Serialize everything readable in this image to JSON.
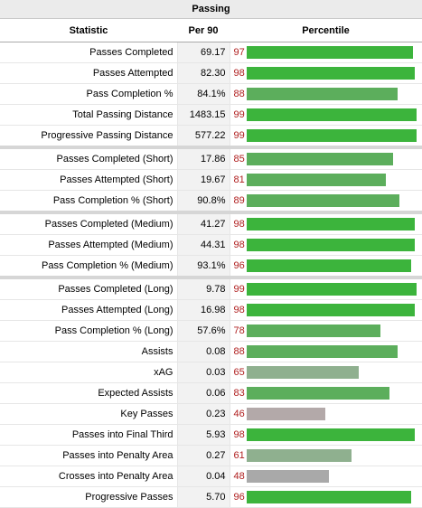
{
  "table": {
    "caption": "Passing",
    "headers": {
      "statistic": "Statistic",
      "per90": "Per 90",
      "percentile": "Percentile"
    },
    "colors": {
      "high": "#3cb43c",
      "mid": "#5cae5c",
      "low": "#8fb08f",
      "lowest": "#a9a9a9",
      "lowest_b": "#b3a9a9",
      "percentile_text": "#b02020"
    },
    "rows": [
      {
        "stat": "Passes Completed",
        "per90": "69.17",
        "percentile": "97",
        "pct": 0.97,
        "tier": "high"
      },
      {
        "stat": "Passes Attempted",
        "per90": "82.30",
        "percentile": "98",
        "pct": 0.98,
        "tier": "high"
      },
      {
        "stat": "Pass Completion %",
        "per90": "84.1%",
        "percentile": "88",
        "pct": 0.88,
        "tier": "mid"
      },
      {
        "stat": "Total Passing Distance",
        "per90": "1483.15",
        "percentile": "99",
        "pct": 0.99,
        "tier": "high"
      },
      {
        "stat": "Progressive Passing Distance",
        "per90": "577.22",
        "percentile": "99",
        "pct": 0.99,
        "tier": "high"
      },
      {
        "stat": "Passes Completed (Short)",
        "per90": "17.86",
        "percentile": "85",
        "pct": 0.85,
        "tier": "mid",
        "sep": true
      },
      {
        "stat": "Passes Attempted (Short)",
        "per90": "19.67",
        "percentile": "81",
        "pct": 0.81,
        "tier": "mid"
      },
      {
        "stat": "Pass Completion % (Short)",
        "per90": "90.8%",
        "percentile": "89",
        "pct": 0.89,
        "tier": "mid"
      },
      {
        "stat": "Passes Completed (Medium)",
        "per90": "41.27",
        "percentile": "98",
        "pct": 0.98,
        "tier": "high",
        "sep": true
      },
      {
        "stat": "Passes Attempted (Medium)",
        "per90": "44.31",
        "percentile": "98",
        "pct": 0.98,
        "tier": "high"
      },
      {
        "stat": "Pass Completion % (Medium)",
        "per90": "93.1%",
        "percentile": "96",
        "pct": 0.96,
        "tier": "high"
      },
      {
        "stat": "Passes Completed (Long)",
        "per90": "9.78",
        "percentile": "99",
        "pct": 0.99,
        "tier": "high",
        "sep": true
      },
      {
        "stat": "Passes Attempted (Long)",
        "per90": "16.98",
        "percentile": "98",
        "pct": 0.98,
        "tier": "high"
      },
      {
        "stat": "Pass Completion % (Long)",
        "per90": "57.6%",
        "percentile": "78",
        "pct": 0.78,
        "tier": "mid"
      },
      {
        "stat": "Assists",
        "per90": "0.08",
        "percentile": "88",
        "pct": 0.88,
        "tier": "mid"
      },
      {
        "stat": "xAG",
        "per90": "0.03",
        "percentile": "65",
        "pct": 0.65,
        "tier": "low"
      },
      {
        "stat": "Expected Assists",
        "per90": "0.06",
        "percentile": "83",
        "pct": 0.83,
        "tier": "mid"
      },
      {
        "stat": "Key Passes",
        "per90": "0.23",
        "percentile": "46",
        "pct": 0.46,
        "tier": "lowest_b"
      },
      {
        "stat": "Passes into Final Third",
        "per90": "5.93",
        "percentile": "98",
        "pct": 0.98,
        "tier": "high"
      },
      {
        "stat": "Passes into Penalty Area",
        "per90": "0.27",
        "percentile": "61",
        "pct": 0.61,
        "tier": "low"
      },
      {
        "stat": "Crosses into Penalty Area",
        "per90": "0.04",
        "percentile": "48",
        "pct": 0.48,
        "tier": "lowest"
      },
      {
        "stat": "Progressive Passes",
        "per90": "5.70",
        "percentile": "96",
        "pct": 0.96,
        "tier": "high"
      }
    ]
  }
}
